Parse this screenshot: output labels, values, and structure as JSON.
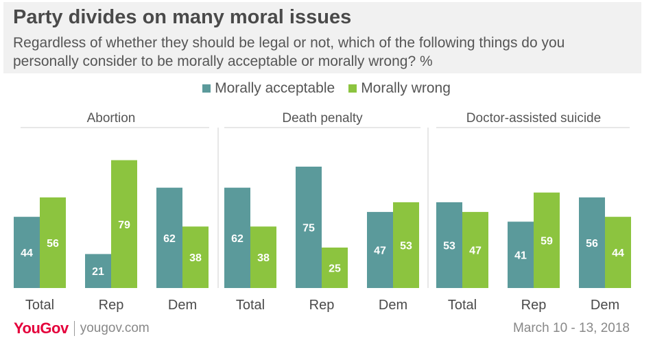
{
  "header": {
    "title": "Party divides on many moral issues",
    "subtitle": "Regardless of whether they should be legal or not, which of the following things do you personally consider to be morally acceptable or morally wrong? %"
  },
  "colors": {
    "acceptable": "#5b9a9b",
    "wrong": "#8cc43f"
  },
  "chart_data": {
    "type": "bar",
    "title": "Party divides on many moral issues",
    "ylim": [
      0,
      100
    ],
    "grid": false,
    "legend": "top-center",
    "series_names": [
      "Morally acceptable",
      "Morally wrong"
    ],
    "groups": [
      {
        "name": "Abortion",
        "categories": [
          "Total",
          "Rep",
          "Dem"
        ],
        "series": [
          {
            "name": "Morally acceptable",
            "values": [
              44,
              21,
              62
            ]
          },
          {
            "name": "Morally wrong",
            "values": [
              56,
              79,
              38
            ]
          }
        ]
      },
      {
        "name": "Death penalty",
        "categories": [
          "Total",
          "Rep",
          "Dem"
        ],
        "series": [
          {
            "name": "Morally acceptable",
            "values": [
              62,
              75,
              47
            ]
          },
          {
            "name": "Morally wrong",
            "values": [
              38,
              25,
              53
            ]
          }
        ]
      },
      {
        "name": "Doctor-assisted suicide",
        "categories": [
          "Total",
          "Rep",
          "Dem"
        ],
        "series": [
          {
            "name": "Morally acceptable",
            "values": [
              53,
              41,
              56
            ]
          },
          {
            "name": "Morally wrong",
            "values": [
              47,
              59,
              44
            ]
          }
        ]
      }
    ]
  },
  "legend": {
    "acceptable_label": "Morally acceptable",
    "wrong_label": "Morally wrong"
  },
  "footer": {
    "logo": "YouGov",
    "site": "yougov.com",
    "date": "March 10 - 13, 2018"
  }
}
